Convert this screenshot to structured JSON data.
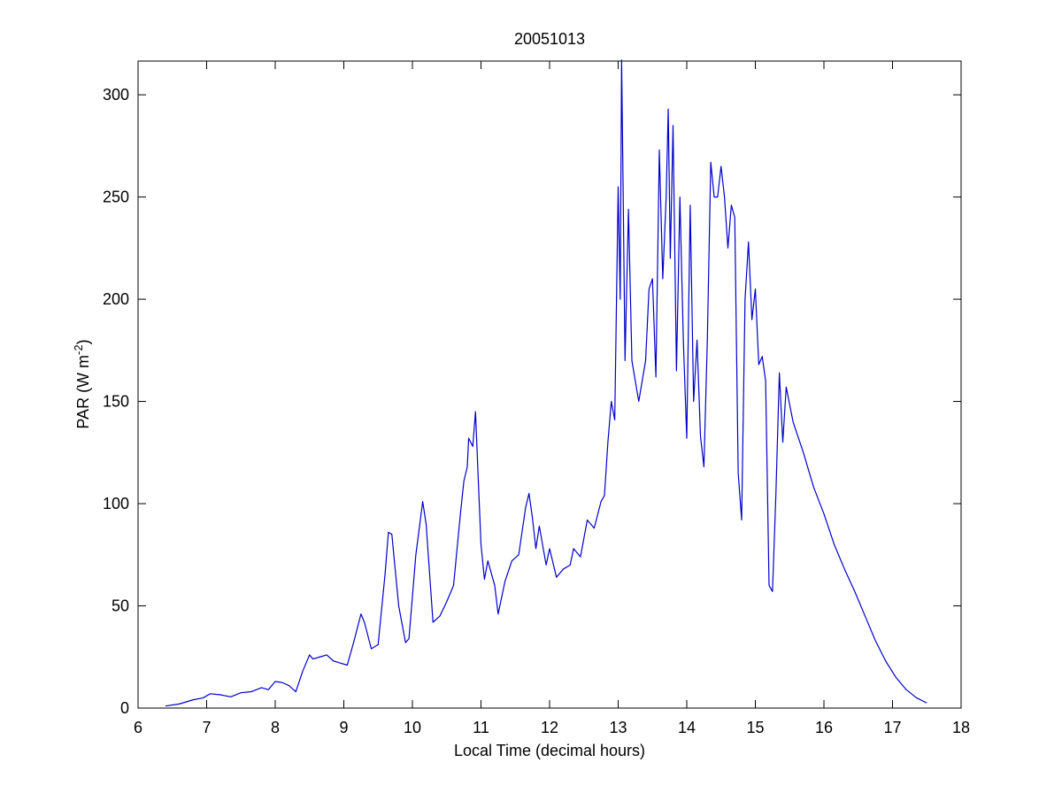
{
  "chart_data": {
    "type": "line",
    "title": "20051013",
    "x_label": "Local Time (decimal hours)",
    "y_label": {
      "text": "PAR (W m",
      "superscript": "-2",
      "suffix": ")"
    },
    "xlim": [
      6,
      18
    ],
    "ylim": [
      0,
      316.5
    ],
    "xticks": [
      6,
      7,
      8,
      9,
      10,
      11,
      12,
      13,
      14,
      15,
      16,
      17,
      18
    ],
    "yticks": [
      0,
      50,
      100,
      150,
      200,
      250,
      300
    ],
    "grid": false,
    "color": "#0000cc",
    "x": [
      6.4,
      6.6,
      6.8,
      6.95,
      7.05,
      7.2,
      7.35,
      7.5,
      7.65,
      7.8,
      7.9,
      8.0,
      8.1,
      8.2,
      8.3,
      8.4,
      8.5,
      8.55,
      8.65,
      8.75,
      8.85,
      8.95,
      9.05,
      9.15,
      9.25,
      9.3,
      9.4,
      9.5,
      9.6,
      9.65,
      9.7,
      9.8,
      9.9,
      9.95,
      10.05,
      10.15,
      10.2,
      10.3,
      10.4,
      10.5,
      10.6,
      10.7,
      10.75,
      10.8,
      10.82,
      10.88,
      10.92,
      10.95,
      11.0,
      11.05,
      11.1,
      11.2,
      11.25,
      11.35,
      11.45,
      11.55,
      11.65,
      11.7,
      11.75,
      11.8,
      11.85,
      11.95,
      12.0,
      12.1,
      12.2,
      12.3,
      12.35,
      12.45,
      12.55,
      12.65,
      12.75,
      12.8,
      12.85,
      12.9,
      12.95,
      13.0,
      13.03,
      13.05,
      13.07,
      13.1,
      13.15,
      13.2,
      13.3,
      13.4,
      13.45,
      13.5,
      13.55,
      13.6,
      13.65,
      13.7,
      13.73,
      13.76,
      13.8,
      13.85,
      13.9,
      13.95,
      14.0,
      14.05,
      14.1,
      14.15,
      14.2,
      14.25,
      14.3,
      14.35,
      14.4,
      14.45,
      14.5,
      14.55,
      14.6,
      14.65,
      14.7,
      14.75,
      14.8,
      14.85,
      14.9,
      14.95,
      15.0,
      15.05,
      15.1,
      15.15,
      15.2,
      15.25,
      15.3,
      15.35,
      15.4,
      15.45,
      15.55,
      15.7,
      15.85,
      16.0,
      16.15,
      16.3,
      16.45,
      16.6,
      16.75,
      16.9,
      17.05,
      17.2,
      17.35,
      17.5
    ],
    "values": [
      1,
      2,
      4,
      5,
      7,
      6.5,
      5.5,
      7.5,
      8,
      10,
      9,
      13,
      12.5,
      11,
      8,
      18,
      26,
      24,
      25,
      26,
      23,
      22,
      21,
      33,
      46,
      42,
      29,
      31,
      65,
      86,
      85,
      50,
      32,
      34,
      75,
      101,
      90,
      42,
      45,
      52,
      60,
      95,
      111,
      118,
      132,
      128,
      145,
      120,
      80,
      63,
      72,
      60,
      46,
      62,
      72,
      75,
      98,
      105,
      93,
      78,
      89,
      70,
      78,
      64,
      68,
      70,
      78,
      74,
      92,
      88,
      101,
      104,
      130,
      150,
      141,
      255,
      200,
      317,
      260,
      170,
      244,
      170,
      150,
      170,
      205,
      210,
      162,
      273,
      210,
      250,
      293,
      220,
      285,
      165,
      250,
      180,
      132,
      246,
      150,
      180,
      133,
      118,
      180,
      267,
      250,
      250,
      265,
      250,
      225,
      246,
      240,
      115,
      92,
      200,
      228,
      190,
      205,
      168,
      172,
      160,
      60,
      57,
      105,
      164,
      130,
      157,
      140,
      125,
      108,
      95,
      80,
      68,
      57,
      45,
      33,
      23,
      15,
      9,
      5,
      2.5
    ]
  }
}
